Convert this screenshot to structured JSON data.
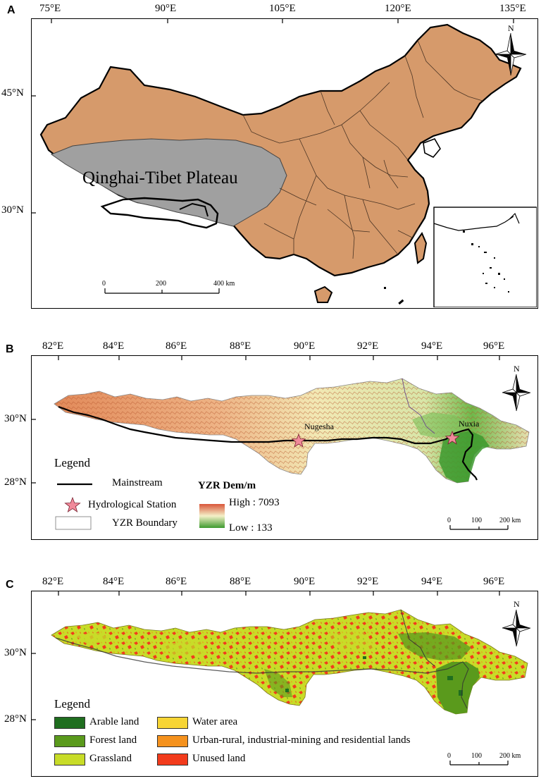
{
  "panels": {
    "a": {
      "letter": "A",
      "lon_ticks": [
        "75°E",
        "90°E",
        "105°E",
        "120°E",
        "135°E"
      ],
      "lat_ticks": [
        "45°N",
        "30°N"
      ],
      "plateau_label": "Qinghai-Tibet Plateau",
      "north": "N",
      "scalebar": [
        "0",
        "200",
        "400 km"
      ],
      "colors": {
        "china": "#d69a6b",
        "plateau": "#a0a0a0"
      }
    },
    "b": {
      "letter": "B",
      "lon_ticks": [
        "82°E",
        "84°E",
        "86°E",
        "88°E",
        "90°E",
        "92°E",
        "94°E",
        "96°E"
      ],
      "lat_ticks": [
        "30°N",
        "28°N"
      ],
      "north": "N",
      "stations": [
        "Nugesha",
        "Nuxia"
      ],
      "legend": {
        "title": "Legend",
        "mainstream": "Mainstream",
        "station": "Hydrological Station",
        "boundary": "YZR Boundary",
        "dem_title": "YZR Dem/m",
        "high": "High : 7093",
        "low": "Low : 133"
      },
      "scalebar": [
        "0",
        "100",
        "200 km"
      ],
      "colors": {
        "high": "#d9553a",
        "mid": "#f4f1c8",
        "low": "#3d9a2f",
        "star": "#f08a9a"
      }
    },
    "c": {
      "letter": "C",
      "lon_ticks": [
        "82°E",
        "84°E",
        "86°E",
        "88°E",
        "90°E",
        "92°E",
        "94°E",
        "96°E"
      ],
      "lat_ticks": [
        "30°N",
        "28°N"
      ],
      "north": "N",
      "legend": {
        "title": "Legend",
        "items": [
          {
            "label": "Arable land",
            "color": "#1f6e1f"
          },
          {
            "label": "Forest land",
            "color": "#5a9a1c"
          },
          {
            "label": "Grassland",
            "color": "#c8dc28"
          },
          {
            "label": "Water area",
            "color": "#f7d534"
          },
          {
            "label": "Urban-rural, industrial-mining and residential lands",
            "color": "#f5921e"
          },
          {
            "label": "Unused land",
            "color": "#f23b1c"
          }
        ]
      },
      "scalebar": [
        "0",
        "100",
        "200 km"
      ]
    }
  }
}
